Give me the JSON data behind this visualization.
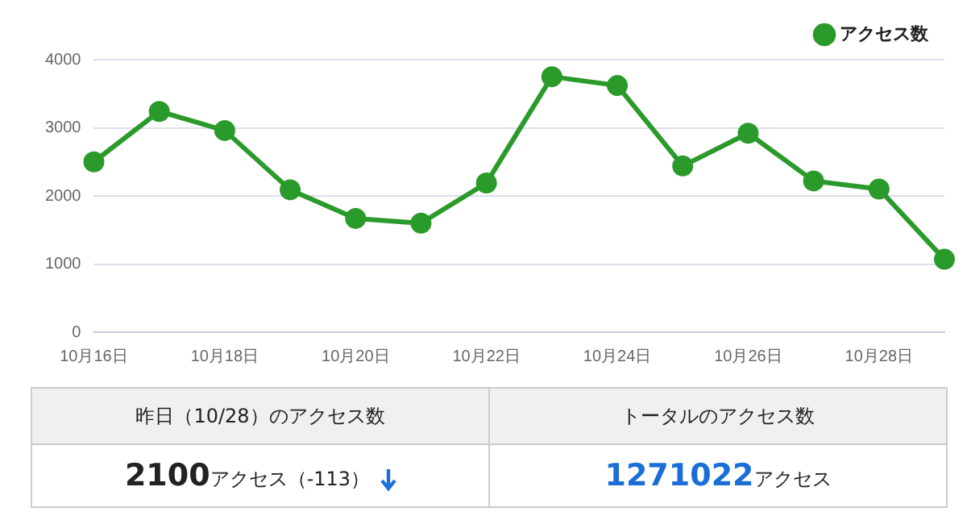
{
  "chart_data": [
    {
      "type": "line",
      "categories": [
        "10月16日",
        null,
        "10月18日",
        null,
        "10月20日",
        null,
        "10月22日",
        null,
        "10月24日",
        null,
        "10月26日",
        null,
        "10月28日",
        null
      ],
      "series": [
        {
          "name": "アクセス数",
          "color": "#2a9a2a",
          "values": [
            2500,
            3240,
            2960,
            2090,
            1670,
            1600,
            2190,
            3750,
            3620,
            2440,
            2920,
            2220,
            2100,
            1070
          ]
        }
      ],
      "ylim": [
        0,
        4000
      ],
      "yticks": [
        0,
        1000,
        2000,
        3000,
        4000
      ],
      "grid": "y",
      "legend": "top right",
      "marker": "circle",
      "line_style": "solid"
    },
    {
      "type": "other",
      "annotations": [
        "昨日（10/28）のアクセス数",
        "トータルのアクセス数",
        "2100",
        "アクセス（-113）",
        "1271022",
        "アクセス"
      ]
    }
  ]
}
